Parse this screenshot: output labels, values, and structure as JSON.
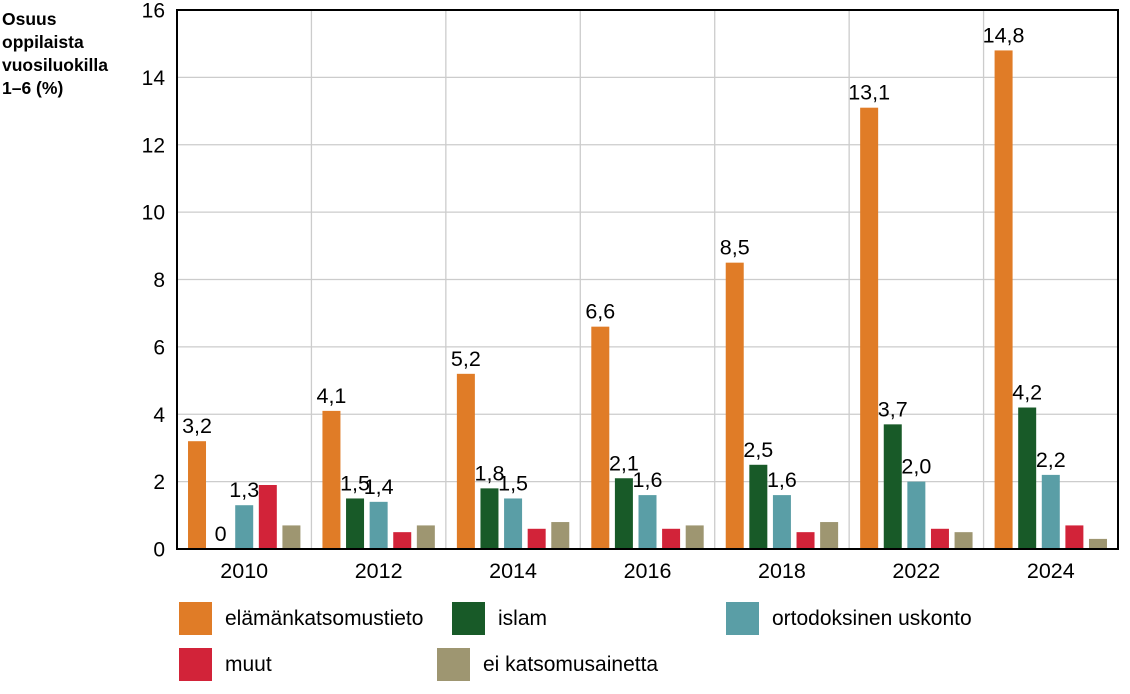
{
  "title_block": "Osuus\noppilaista\nvuosiluokilla\n1–6 (%)",
  "colors": {
    "background": "#ffffff",
    "grid": "#cccccc",
    "frame": "#000000",
    "text": "#000000"
  },
  "chart_data": {
    "type": "bar",
    "title": "Osuus oppilaista vuosiluokilla 1–6 (%)",
    "xlabel": "",
    "ylabel": "Osuus oppilaista vuosiluokilla 1–6 (%)",
    "categories": [
      "2010",
      "2012",
      "2014",
      "2016",
      "2018",
      "2022",
      "2024"
    ],
    "series": [
      {
        "name": "elämänkatsomustieto",
        "color": "#e07c27",
        "values": [
          3.2,
          4.1,
          5.2,
          6.6,
          8.5,
          13.1,
          14.8
        ],
        "labels": [
          "3,2",
          "4,1",
          "5,2",
          "6,6",
          "8,5",
          "13,1",
          "14,8"
        ]
      },
      {
        "name": "islam",
        "color": "#185a28",
        "values": [
          0,
          1.5,
          1.8,
          2.1,
          2.5,
          3.7,
          4.2
        ],
        "labels": [
          "0",
          "1,5",
          "1,8",
          "2,1",
          "2,5",
          "3,7",
          "4,2"
        ]
      },
      {
        "name": "ortodoksinen uskonto",
        "color": "#5a9ea6",
        "values": [
          1.3,
          1.4,
          1.5,
          1.6,
          1.6,
          2.0,
          2.2
        ],
        "labels": [
          "1,3",
          "1,4",
          "1,5",
          "1,6",
          "1,6",
          "2,0",
          "2,2"
        ]
      },
      {
        "name": "muut",
        "color": "#d22339",
        "values": [
          1.9,
          0.5,
          0.6,
          0.6,
          0.5,
          0.6,
          0.7
        ],
        "labels": [
          "",
          "",
          "",
          "",
          "",
          "",
          ""
        ]
      },
      {
        "name": "ei katsomusainetta",
        "color": "#9e9671",
        "values": [
          0.7,
          0.7,
          0.8,
          0.7,
          0.8,
          0.5,
          0.3
        ],
        "labels": [
          "",
          "",
          "",
          "",
          "",
          "",
          ""
        ]
      }
    ],
    "ylim": [
      0,
      16
    ],
    "yticks": [
      0,
      2,
      4,
      6,
      8,
      10,
      12,
      14,
      16
    ],
    "grid": true,
    "legend_position": "bottom"
  }
}
